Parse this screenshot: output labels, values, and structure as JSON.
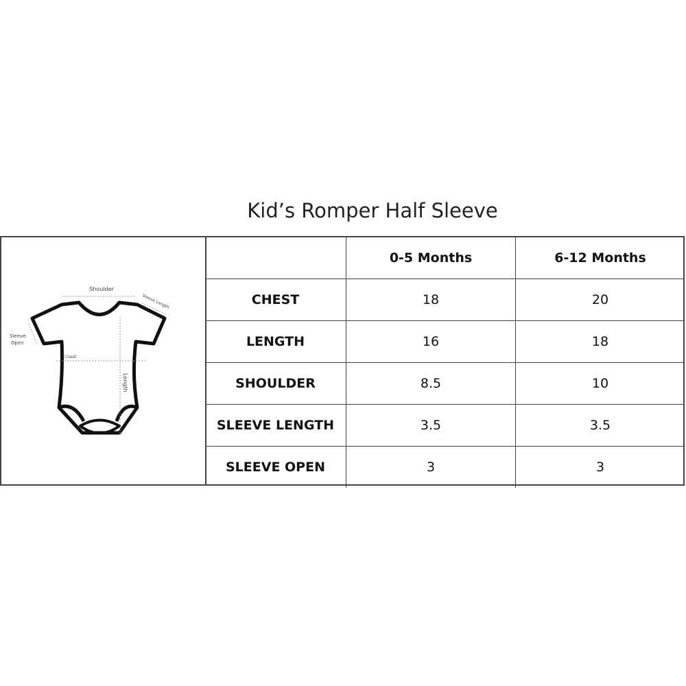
{
  "title": "Kid’s Romper Half Sleeve",
  "diagram": {
    "labels": {
      "shoulder": "Shoulder",
      "sleeve_length": "Sleeve Length",
      "sleeve_open": [
        "Sleeve",
        "Open"
      ],
      "chest": "Chest",
      "length": "Length"
    }
  },
  "table": {
    "columns": [
      "",
      "0-5 Months",
      "6-12 Months"
    ],
    "rows": [
      {
        "label": "CHEST",
        "values": [
          "18",
          "20"
        ]
      },
      {
        "label": "LENGTH",
        "values": [
          "16",
          "18"
        ]
      },
      {
        "label": "SHOULDER",
        "values": [
          "8.5",
          "10"
        ]
      },
      {
        "label": "SLEEVE LENGTH",
        "values": [
          "3.5",
          "3.5"
        ]
      },
      {
        "label": "SLEEVE OPEN",
        "values": [
          "3",
          "3"
        ]
      }
    ]
  }
}
